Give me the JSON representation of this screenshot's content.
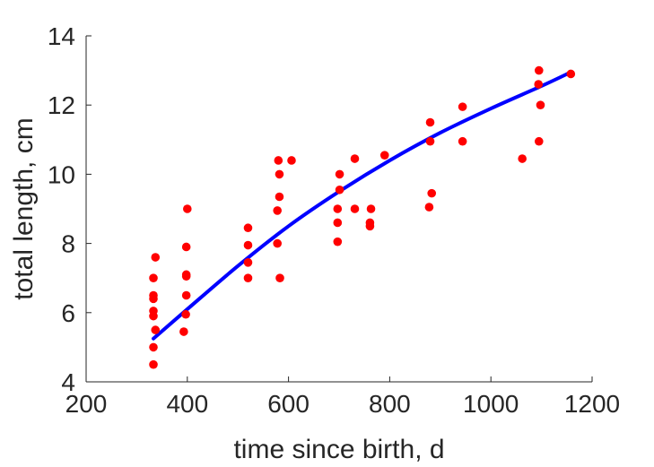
{
  "chart_data": {
    "type": "scatter",
    "title": "",
    "xlabel": "time since birth, d",
    "ylabel": "total length, cm",
    "xlim": [
      200,
      1200
    ],
    "ylim": [
      4,
      14
    ],
    "xticks": [
      200,
      400,
      600,
      800,
      1000,
      1200
    ],
    "yticks": [
      4,
      6,
      8,
      10,
      12,
      14
    ],
    "grid": false,
    "legend": "none",
    "colors": {
      "points": "#ff0000",
      "curve": "#0000ff",
      "axes": "#262626"
    },
    "series": [
      {
        "type": "scatter",
        "points": [
          [
            333,
            4.5
          ],
          [
            333,
            5.0
          ],
          [
            337,
            5.5
          ],
          [
            333,
            5.9
          ],
          [
            333,
            6.05
          ],
          [
            333,
            6.4
          ],
          [
            333,
            6.5
          ],
          [
            333,
            7.0
          ],
          [
            337,
            7.6
          ],
          [
            393,
            5.45
          ],
          [
            397,
            5.95
          ],
          [
            398,
            6.5
          ],
          [
            398,
            7.05
          ],
          [
            398,
            7.1
          ],
          [
            398,
            7.9
          ],
          [
            400,
            9.0
          ],
          [
            520,
            7.0
          ],
          [
            520,
            7.45
          ],
          [
            520,
            7.95
          ],
          [
            520,
            8.45
          ],
          [
            578,
            8.0
          ],
          [
            578,
            8.95
          ],
          [
            582,
            9.35
          ],
          [
            582,
            10.0
          ],
          [
            580,
            10.4
          ],
          [
            583,
            7.0
          ],
          [
            606,
            10.4
          ],
          [
            697,
            8.05
          ],
          [
            697,
            8.6
          ],
          [
            697,
            9.0
          ],
          [
            701,
            9.55
          ],
          [
            701,
            10.0
          ],
          [
            731,
            9.0
          ],
          [
            731,
            10.45
          ],
          [
            761,
            8.5
          ],
          [
            761,
            8.6
          ],
          [
            763,
            9.0
          ],
          [
            790,
            10.55
          ],
          [
            878,
            9.05
          ],
          [
            883,
            9.45
          ],
          [
            880,
            10.95
          ],
          [
            880,
            11.5
          ],
          [
            944,
            10.95
          ],
          [
            944,
            11.95
          ],
          [
            1062,
            10.45
          ],
          [
            1095,
            10.95
          ],
          [
            1094,
            12.6
          ],
          [
            1095,
            13.0
          ],
          [
            1098,
            12.0
          ],
          [
            1158,
            12.9
          ]
        ]
      },
      {
        "type": "line",
        "x": [
          333,
          400,
          500,
          600,
          700,
          800,
          900,
          1000,
          1100,
          1158
        ],
        "y": [
          5.25,
          6.1,
          7.35,
          8.5,
          9.5,
          10.4,
          11.2,
          11.9,
          12.55,
          12.95
        ]
      }
    ]
  }
}
